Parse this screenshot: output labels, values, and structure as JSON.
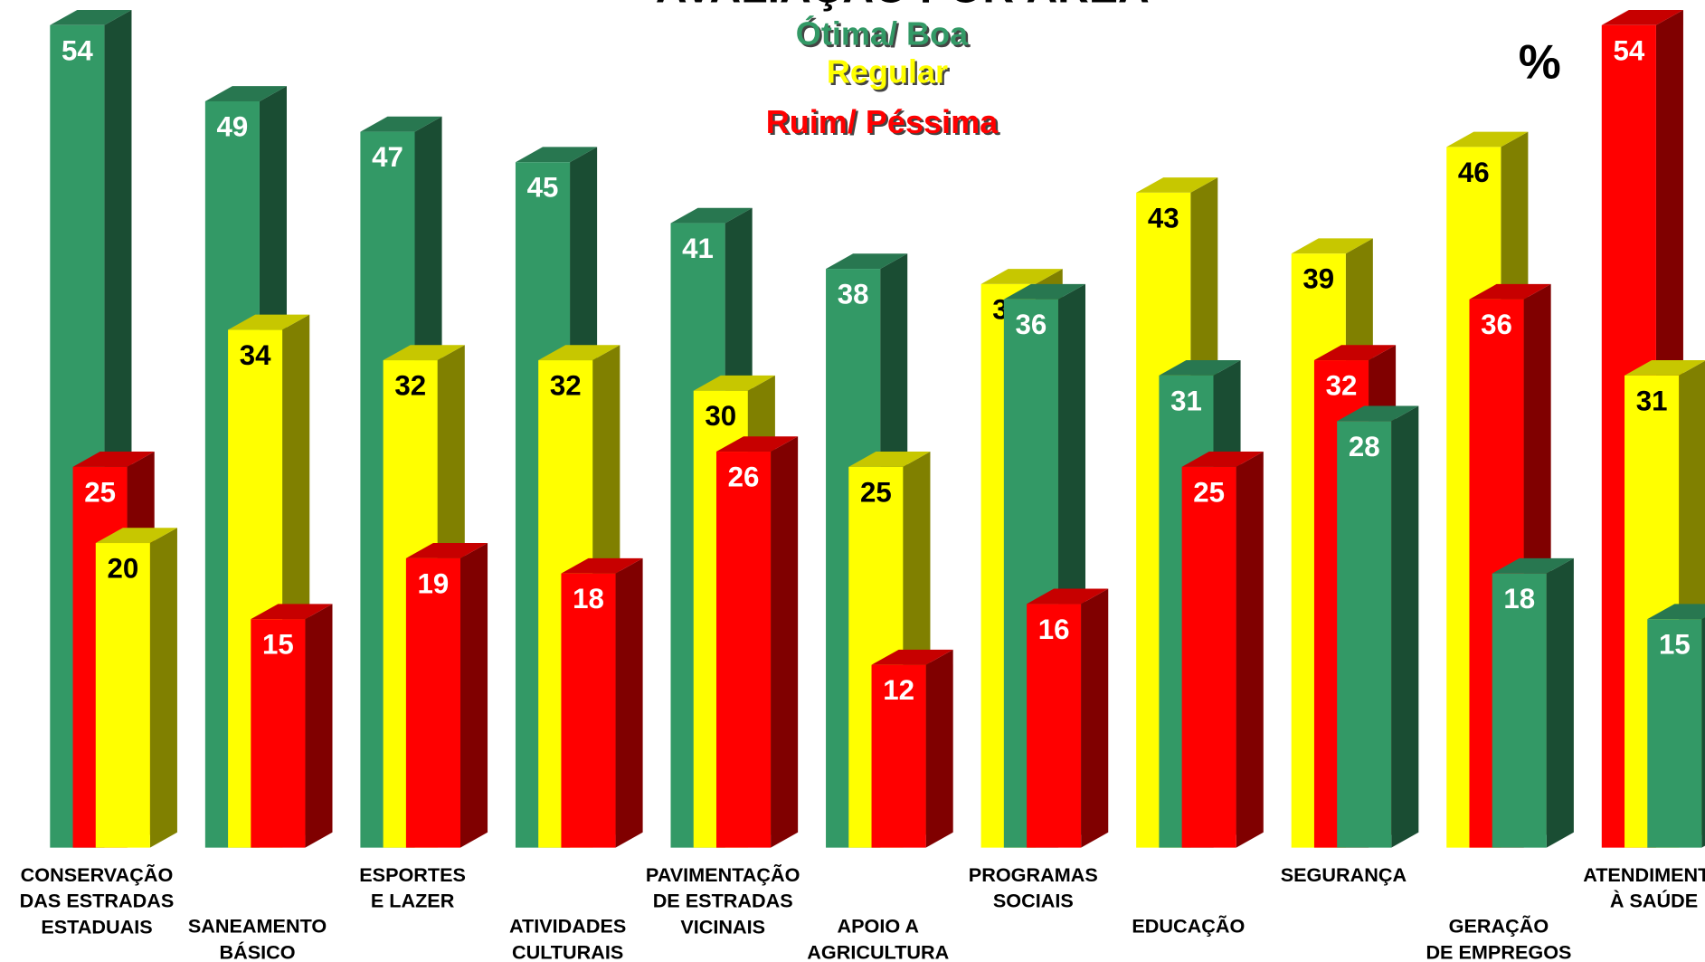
{
  "chart_data": {
    "type": "bar3d",
    "title": "AVALIAÇÃO POR ÁREA",
    "unit_label": "%",
    "categories": [
      [
        "CONSERVAÇÃO",
        "DAS ESTRADAS",
        "ESTADUAIS"
      ],
      [
        "SANEAMENTO",
        "BÁSICO"
      ],
      [
        "ESPORTES",
        "E LAZER"
      ],
      [
        "ATIVIDADES",
        "CULTURAIS"
      ],
      [
        "PAVIMENTAÇÃO",
        "DE ESTRADAS",
        "VICINAIS"
      ],
      [
        "APOIO A",
        "AGRICULTURA"
      ],
      [
        "PROGRAMAS",
        "SOCIAIS"
      ],
      [
        "EDUCAÇÃO"
      ],
      [
        "SEGURANÇA"
      ],
      [
        "GERAÇÃO",
        "DE EMPREGOS"
      ],
      [
        "ATENDIMENTO",
        "À SAÚDE"
      ]
    ],
    "series": [
      {
        "name": "Ótima/ Boa",
        "color": "#339966",
        "values": [
          54,
          49,
          47,
          45,
          41,
          38,
          36,
          31,
          28,
          18,
          15
        ]
      },
      {
        "name": "Regular",
        "color": "#ffff00",
        "values": [
          20,
          34,
          32,
          32,
          30,
          25,
          37,
          43,
          39,
          46,
          31
        ]
      },
      {
        "name": "Ruim/ Péssima",
        "color": "#ff0000",
        "values": [
          25,
          15,
          19,
          18,
          26,
          12,
          16,
          25,
          32,
          36,
          54
        ]
      }
    ]
  }
}
